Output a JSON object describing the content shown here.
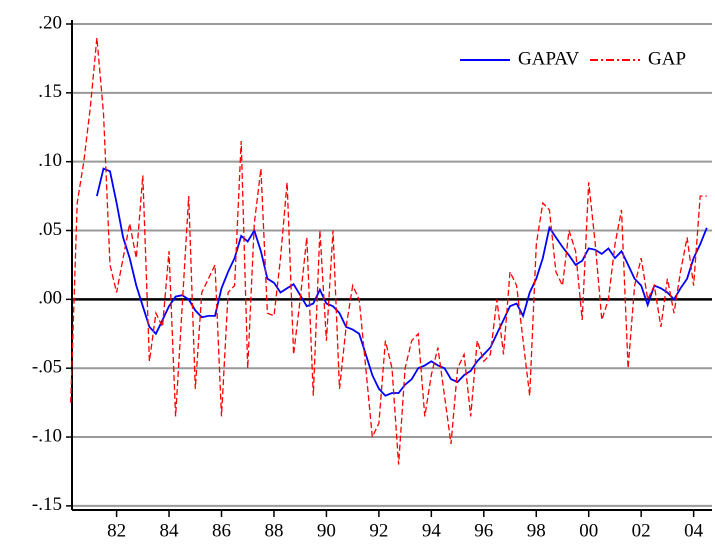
{
  "chart_data": {
    "type": "line",
    "x": [
      1980.25,
      1980.5,
      1980.75,
      1981,
      1981.25,
      1981.5,
      1981.75,
      1982,
      1982.25,
      1982.5,
      1982.75,
      1983,
      1983.25,
      1983.5,
      1983.75,
      1984,
      1984.25,
      1984.5,
      1984.75,
      1985,
      1985.25,
      1985.5,
      1985.75,
      1986,
      1986.25,
      1986.5,
      1986.75,
      1987,
      1987.25,
      1987.5,
      1987.75,
      1988,
      1988.25,
      1988.5,
      1988.75,
      1989,
      1989.25,
      1989.5,
      1989.75,
      1990,
      1990.25,
      1990.5,
      1990.75,
      1991,
      1991.25,
      1991.5,
      1991.75,
      1992,
      1992.25,
      1992.5,
      1992.75,
      1993,
      1993.25,
      1993.5,
      1993.75,
      1994,
      1994.25,
      1994.5,
      1994.75,
      1995,
      1995.25,
      1995.5,
      1995.75,
      1996,
      1996.25,
      1996.5,
      1996.75,
      1997,
      1997.25,
      1997.5,
      1997.75,
      1998,
      1998.25,
      1998.5,
      1998.75,
      1999,
      1999.25,
      1999.5,
      1999.75,
      2000,
      2000.25,
      2000.5,
      2000.75,
      2001,
      2001.25,
      2001.5,
      2001.75,
      2002,
      2002.25,
      2002.5,
      2002.75,
      2003,
      2003.25,
      2003.5,
      2003.75,
      2004,
      2004.25,
      2004.5
    ],
    "series": [
      {
        "name": "GAPAV",
        "color": "#0000ff",
        "line_style": "solid",
        "values": [
          null,
          null,
          null,
          null,
          0.075,
          0.095,
          0.093,
          0.07,
          0.045,
          0.03,
          0.01,
          -0.005,
          -0.02,
          -0.025,
          -0.015,
          -0.005,
          0.002,
          0.003,
          0.0,
          -0.008,
          -0.013,
          -0.012,
          -0.012,
          0.008,
          0.02,
          0.03,
          0.046,
          0.042,
          0.05,
          0.035,
          0.015,
          0.012,
          0.005,
          0.008,
          0.011,
          0.003,
          -0.005,
          -0.003,
          0.007,
          -0.003,
          -0.005,
          -0.01,
          -0.02,
          -0.022,
          -0.025,
          -0.04,
          -0.055,
          -0.065,
          -0.07,
          -0.068,
          -0.068,
          -0.062,
          -0.058,
          -0.05,
          -0.048,
          -0.045,
          -0.048,
          -0.05,
          -0.058,
          -0.06,
          -0.055,
          -0.052,
          -0.045,
          -0.04,
          -0.035,
          -0.025,
          -0.015,
          -0.005,
          -0.003,
          -0.012,
          0.005,
          0.015,
          0.03,
          0.052,
          0.045,
          0.038,
          0.032,
          0.025,
          0.028,
          0.037,
          0.036,
          0.033,
          0.037,
          0.03,
          0.035,
          0.025,
          0.015,
          0.01,
          -0.004,
          0.01,
          0.008,
          0.005,
          0.0,
          0.008,
          0.015,
          0.03,
          0.04,
          0.052
        ]
      },
      {
        "name": "GAP",
        "color": "#ff0000",
        "line_style": "dashed",
        "values": [
          -0.075,
          0.07,
          0.1,
          0.14,
          0.19,
          0.135,
          0.025,
          0.005,
          0.03,
          0.055,
          0.03,
          0.09,
          -0.045,
          -0.01,
          -0.02,
          0.035,
          -0.085,
          -0.005,
          0.075,
          -0.065,
          0.005,
          0.015,
          0.025,
          -0.085,
          0.005,
          0.01,
          0.115,
          -0.05,
          0.055,
          0.095,
          -0.01,
          -0.012,
          0.03,
          0.085,
          -0.04,
          0.0,
          0.045,
          -0.07,
          0.05,
          -0.03,
          0.05,
          -0.065,
          -0.02,
          0.01,
          0.0,
          -0.05,
          -0.1,
          -0.09,
          -0.03,
          -0.05,
          -0.12,
          -0.05,
          -0.03,
          -0.025,
          -0.085,
          -0.055,
          -0.035,
          -0.07,
          -0.105,
          -0.05,
          -0.04,
          -0.085,
          -0.03,
          -0.045,
          -0.04,
          0.0,
          -0.04,
          0.02,
          0.01,
          -0.03,
          -0.07,
          0.04,
          0.07,
          0.065,
          0.02,
          0.01,
          0.05,
          0.035,
          -0.015,
          0.085,
          0.04,
          -0.015,
          0.0,
          0.04,
          0.065,
          -0.05,
          0.01,
          0.03,
          0.0,
          0.01,
          -0.02,
          0.015,
          -0.01,
          0.02,
          0.045,
          0.01,
          0.075,
          0.075
        ]
      }
    ],
    "xlim": [
      1980.3,
      2004.7
    ],
    "xticks": [
      {
        "value": 1982,
        "label": "82"
      },
      {
        "value": 1984,
        "label": "84"
      },
      {
        "value": 1986,
        "label": "86"
      },
      {
        "value": 1988,
        "label": "88"
      },
      {
        "value": 1990,
        "label": "90"
      },
      {
        "value": 1992,
        "label": "92"
      },
      {
        "value": 1994,
        "label": "94"
      },
      {
        "value": 1996,
        "label": "96"
      },
      {
        "value": 1998,
        "label": "98"
      },
      {
        "value": 2000,
        "label": "00"
      },
      {
        "value": 2002,
        "label": "02"
      },
      {
        "value": 2004,
        "label": "04"
      }
    ],
    "ylim": [
      -0.153,
      0.2
    ],
    "yticks": [
      {
        "value": 0.2,
        "label": ".20"
      },
      {
        "value": 0.15,
        "label": ".15"
      },
      {
        "value": 0.1,
        "label": ".10"
      },
      {
        "value": 0.05,
        "label": ".05"
      },
      {
        "value": 0,
        "label": ".00"
      },
      {
        "value": -0.05,
        "label": "-.05"
      },
      {
        "value": -0.1,
        "label": "-.10"
      },
      {
        "value": -0.15,
        "label": "-.15"
      }
    ],
    "grid": true,
    "zero_line": true,
    "legend": "upper right"
  }
}
